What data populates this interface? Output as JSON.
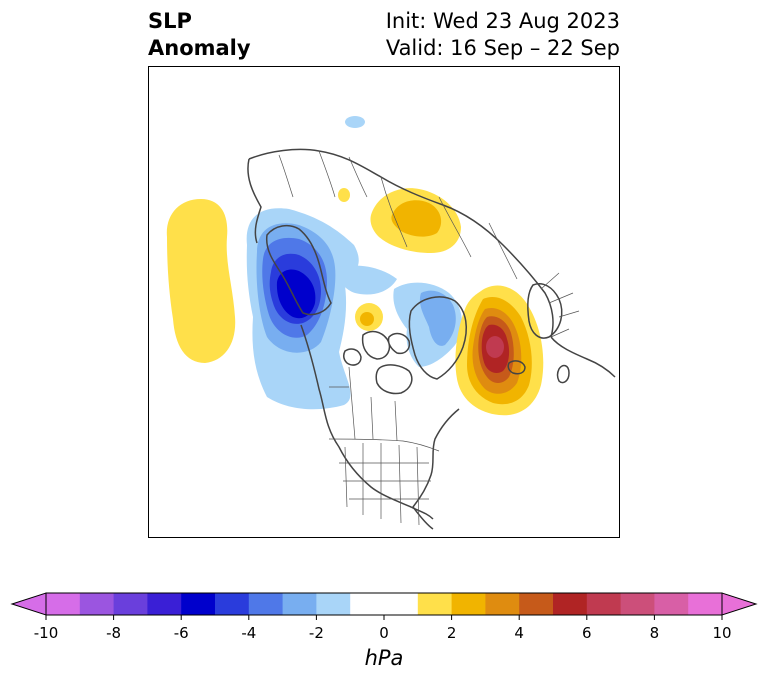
{
  "title": {
    "line1": "SLP",
    "line2": "Anomaly",
    "init": "Init: Wed 23 Aug 2023",
    "valid": "Valid: 16 Sep – 22 Sep"
  },
  "map": {
    "projection": "north-polar-stereographic",
    "coastline_color": "#444444",
    "border_color": "#555555"
  },
  "colorbar": {
    "units": "hPa",
    "extend": "both",
    "min": -10,
    "max": 10,
    "step": 1,
    "tick_labels": [
      "-10",
      "-8",
      "-6",
      "-4",
      "-2",
      "0",
      "2",
      "4",
      "6",
      "8",
      "10"
    ],
    "colors": [
      "#d66de8",
      "#9b55e0",
      "#6a3fdc",
      "#3a1fd6",
      "#0000cc",
      "#2a3cdc",
      "#4f78e8",
      "#78aef0",
      "#a9d5f8",
      "#ffffff",
      "#ffffff",
      "#ffe04a",
      "#f1b400",
      "#df8c10",
      "#c65a1a",
      "#b02424",
      "#c03a50",
      "#cc4f7a",
      "#d85fa6",
      "#e870d8"
    ]
  }
}
